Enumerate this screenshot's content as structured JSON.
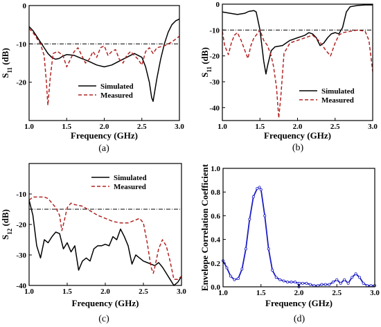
{
  "chart_data": [
    {
      "id": "a",
      "type": "line",
      "panel_label": "(a)",
      "xlabel": "Frequency (GHz)",
      "ylabel_main": "S",
      "ylabel_sub": "11",
      "ylabel_unit": " (dB)",
      "xlim": [
        1.0,
        3.0
      ],
      "ylim": [
        -30,
        0
      ],
      "xticks": [
        "1.0",
        "1.5",
        "2.0",
        "2.5",
        "3.0"
      ],
      "yticks": [
        "0",
        "-10",
        "-20"
      ],
      "ytick_values": [
        0,
        -10,
        -20
      ],
      "reference_line": -10,
      "legend_position": "center",
      "series": [
        {
          "name": "Simulated",
          "style": "solid",
          "color": "#000000",
          "x": [
            1.0,
            1.05,
            1.1,
            1.15,
            1.2,
            1.25,
            1.3,
            1.35,
            1.4,
            1.45,
            1.5,
            1.6,
            1.7,
            1.8,
            1.9,
            2.0,
            2.1,
            2.2,
            2.3,
            2.4,
            2.5,
            2.55,
            2.6,
            2.63,
            2.65,
            2.7,
            2.75,
            2.8,
            2.85,
            2.9,
            2.95,
            3.0
          ],
          "values": [
            -5.5,
            -6.5,
            -8,
            -9.5,
            -11,
            -12.5,
            -13.5,
            -14,
            -13.8,
            -13.2,
            -12.8,
            -13,
            -13.8,
            -14.6,
            -15.5,
            -16,
            -15.5,
            -14.5,
            -13.5,
            -12.5,
            -13.5,
            -16,
            -20,
            -24,
            -25,
            -19,
            -14,
            -10,
            -7,
            -5,
            -4,
            -3.5
          ]
        },
        {
          "name": "Measured",
          "style": "dashed",
          "color": "#b22222",
          "x": [
            1.0,
            1.05,
            1.1,
            1.15,
            1.2,
            1.23,
            1.25,
            1.28,
            1.32,
            1.38,
            1.45,
            1.5,
            1.55,
            1.6,
            1.65,
            1.7,
            1.75,
            1.8,
            1.85,
            1.9,
            1.95,
            2.0,
            2.05,
            2.1,
            2.15,
            2.2,
            2.25,
            2.3,
            2.35,
            2.4,
            2.45,
            2.5,
            2.55,
            2.6,
            2.65,
            2.7,
            2.8,
            2.9,
            3.0
          ],
          "values": [
            -6,
            -7,
            -8.5,
            -10,
            -13,
            -20,
            -26,
            -19,
            -12.5,
            -12,
            -13,
            -16,
            -14,
            -12,
            -11,
            -13,
            -15,
            -14,
            -12,
            -13.5,
            -11,
            -10.5,
            -13,
            -12,
            -11.5,
            -14,
            -15,
            -13,
            -12,
            -13,
            -14,
            -15.5,
            -12,
            -11,
            -12.5,
            -11,
            -10.5,
            -9.5,
            -8
          ]
        }
      ]
    },
    {
      "id": "b",
      "type": "line",
      "panel_label": "(b)",
      "xlabel": "Frequency (GHz)",
      "ylabel_main": "S",
      "ylabel_sub": "11",
      "ylabel_unit": " (dB)",
      "xlim": [
        1.0,
        3.0
      ],
      "ylim": [
        -45,
        0
      ],
      "xticks": [
        "1.0",
        "1.5",
        "2.0",
        "2.5",
        "3.0"
      ],
      "yticks": [
        "0",
        "-10",
        "-20",
        "-30",
        "-40"
      ],
      "ytick_values": [
        0,
        -10,
        -20,
        -30,
        -40
      ],
      "reference_line": -10,
      "legend_position": "bottom-right",
      "series": [
        {
          "name": "Simulated",
          "style": "solid",
          "color": "#000000",
          "x": [
            1.0,
            1.1,
            1.2,
            1.3,
            1.35,
            1.42,
            1.45,
            1.5,
            1.55,
            1.58,
            1.6,
            1.65,
            1.7,
            1.8,
            1.9,
            2.0,
            2.05,
            2.1,
            2.15,
            2.2,
            2.25,
            2.3,
            2.35,
            2.4,
            2.45,
            2.5,
            2.55,
            2.6,
            2.65,
            2.7,
            2.8,
            2.9,
            3.0
          ],
          "values": [
            -3,
            -3.5,
            -4,
            -3.5,
            -2.8,
            -2.5,
            -3,
            -10,
            -22,
            -27,
            -24,
            -18,
            -16.5,
            -16,
            -14,
            -13,
            -12.5,
            -12,
            -11,
            -11.5,
            -13,
            -16,
            -15,
            -13,
            -11.5,
            -11,
            -11.5,
            -9,
            -3,
            -1,
            -0.5,
            -0.3,
            -0.3
          ]
        },
        {
          "name": "Measured",
          "style": "dashed",
          "color": "#b22222",
          "x": [
            1.0,
            1.03,
            1.08,
            1.12,
            1.16,
            1.2,
            1.25,
            1.3,
            1.34,
            1.38,
            1.42,
            1.45,
            1.5,
            1.55,
            1.6,
            1.65,
            1.68,
            1.72,
            1.75,
            1.78,
            1.82,
            1.9,
            2.0,
            2.1,
            2.2,
            2.28,
            2.32,
            2.38,
            2.44,
            2.5,
            2.55,
            2.6,
            2.7,
            2.8,
            2.9,
            2.95,
            3.0
          ],
          "values": [
            -10.5,
            -16,
            -19.5,
            -15,
            -12,
            -11,
            -14,
            -18,
            -21,
            -16,
            -13,
            -12,
            -10,
            -14,
            -16,
            -20,
            -24,
            -32,
            -44,
            -35,
            -19,
            -15,
            -14,
            -13,
            -12,
            -14,
            -15.5,
            -18,
            -20,
            -15,
            -12,
            -11,
            -10.5,
            -10,
            -10.5,
            -14,
            -26
          ]
        }
      ]
    },
    {
      "id": "c",
      "type": "line",
      "panel_label": "(c)",
      "xlabel": "Frequency (GHz)",
      "ylabel_main": "S",
      "ylabel_sub": "12",
      "ylabel_unit": " (dB)",
      "xlim": [
        1.0,
        3.0
      ],
      "ylim": [
        -40,
        0
      ],
      "xticks": [
        "1.0",
        "1.5",
        "2.0",
        "2.5",
        "3.0"
      ],
      "yticks": [
        "-10",
        "-20",
        "-30",
        "-40"
      ],
      "ytick_values": [
        -10,
        -20,
        -30,
        -40
      ],
      "reference_line": -15,
      "legend_position": "top-center",
      "series": [
        {
          "name": "Simulated",
          "style": "solid",
          "color": "#000000",
          "x": [
            1.0,
            1.05,
            1.1,
            1.15,
            1.2,
            1.25,
            1.3,
            1.35,
            1.4,
            1.45,
            1.5,
            1.55,
            1.6,
            1.65,
            1.7,
            1.75,
            1.8,
            1.85,
            1.9,
            1.95,
            2.0,
            2.05,
            2.1,
            2.15,
            2.2,
            2.25,
            2.3,
            2.35,
            2.4,
            2.45,
            2.5,
            2.55,
            2.6,
            2.65,
            2.7,
            2.75,
            2.8,
            2.85,
            2.9,
            2.95,
            3.0
          ],
          "values": [
            -12,
            -17,
            -27,
            -31,
            -25,
            -26,
            -24,
            -22.5,
            -23,
            -28,
            -26,
            -29,
            -27,
            -35,
            -32,
            -31,
            -32,
            -28,
            -27,
            -27,
            -26.5,
            -27,
            -24,
            -25,
            -21.5,
            -24,
            -27,
            -33,
            -30,
            -31,
            -32,
            -32.5,
            -33,
            -33.5,
            -32.5,
            -34,
            -36,
            -38,
            -40,
            -39,
            -37
          ]
        },
        {
          "name": "Measured",
          "style": "dashed",
          "color": "#b22222",
          "x": [
            1.0,
            1.05,
            1.1,
            1.15,
            1.2,
            1.25,
            1.3,
            1.35,
            1.4,
            1.43,
            1.46,
            1.5,
            1.55,
            1.6,
            1.7,
            1.8,
            1.9,
            2.0,
            2.1,
            2.2,
            2.3,
            2.4,
            2.45,
            2.5,
            2.55,
            2.6,
            2.63,
            2.65,
            2.7,
            2.75,
            2.8,
            2.85,
            2.9,
            2.95,
            3.0
          ],
          "values": [
            -12,
            -11,
            -11,
            -11,
            -11,
            -11.5,
            -13,
            -14.5,
            -17,
            -22,
            -19,
            -14.5,
            -13,
            -13.5,
            -14,
            -15.5,
            -17,
            -18,
            -19,
            -19.5,
            -19.5,
            -18.5,
            -18,
            -19.5,
            -26,
            -34,
            -36,
            -34,
            -28,
            -25,
            -27,
            -32,
            -38,
            -38,
            -37
          ]
        }
      ]
    },
    {
      "id": "d",
      "type": "line",
      "panel_label": "(d)",
      "xlabel": "Frequency (GHz)",
      "ylabel": "Envelope Correlation Coefficient",
      "xlim": [
        1.0,
        3.0
      ],
      "ylim": [
        0,
        1.0
      ],
      "xticks": [
        "1.0",
        "1.5",
        "2.0",
        "2.5",
        "3.0"
      ],
      "yticks": [
        "0.0",
        "0.2",
        "0.4",
        "0.6",
        "0.8",
        "1.0"
      ],
      "ytick_values": [
        0,
        0.2,
        0.4,
        0.6,
        0.8,
        1.0
      ],
      "series": [
        {
          "style": "solid-with-dots",
          "color": "#1c1cc4",
          "x": [
            1.0,
            1.05,
            1.1,
            1.15,
            1.2,
            1.25,
            1.3,
            1.35,
            1.4,
            1.45,
            1.48,
            1.5,
            1.55,
            1.6,
            1.65,
            1.7,
            1.75,
            1.8,
            1.85,
            1.9,
            1.95,
            1.99,
            2.0,
            2.01,
            2.05,
            2.1,
            2.15,
            2.2,
            2.25,
            2.3,
            2.35,
            2.4,
            2.45,
            2.5,
            2.55,
            2.6,
            2.65,
            2.7,
            2.75,
            2.8,
            2.85,
            2.9,
            2.95,
            3.0
          ],
          "values": [
            0.22,
            0.16,
            0.09,
            0.06,
            0.07,
            0.15,
            0.32,
            0.57,
            0.76,
            0.83,
            0.84,
            0.82,
            0.6,
            0.32,
            0.14,
            0.08,
            0.06,
            0.05,
            0.04,
            0.04,
            0.04,
            0.03,
            0.0,
            0.03,
            0.03,
            0.03,
            0.02,
            0.01,
            0.01,
            0.02,
            0.02,
            0.02,
            0.04,
            0.06,
            0.03,
            0.06,
            0.03,
            0.08,
            0.11,
            0.08,
            0.03,
            0.01,
            0.01,
            0.01
          ]
        }
      ]
    }
  ]
}
